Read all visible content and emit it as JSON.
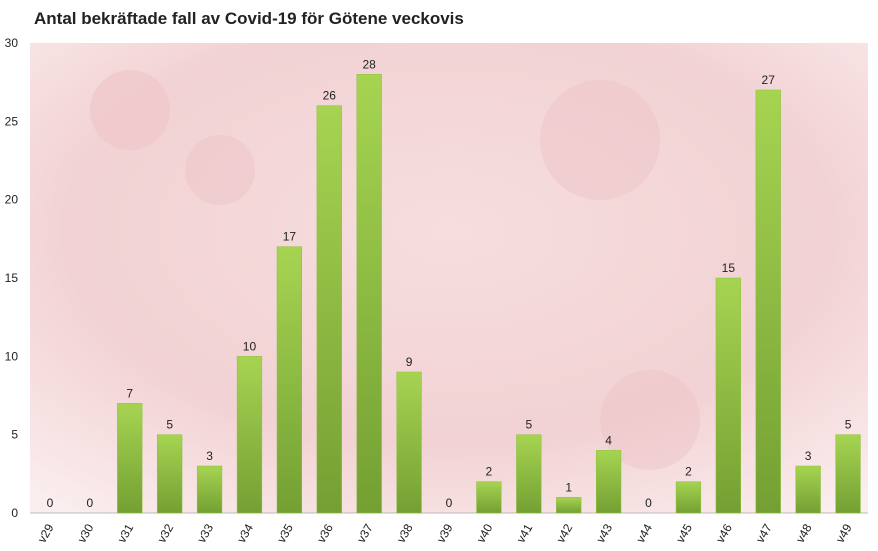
{
  "chart_data": {
    "type": "bar",
    "title": "Antal bekräftade fall av Covid-19 för Götene veckovis",
    "categories": [
      "v29",
      "v30",
      "v31",
      "v32",
      "v33",
      "v34",
      "v35",
      "v36",
      "v37",
      "v38",
      "v39",
      "v40",
      "v41",
      "v42",
      "v43",
      "v44",
      "v45",
      "v46",
      "v47",
      "v48",
      "v49"
    ],
    "values": [
      0,
      0,
      7,
      5,
      3,
      10,
      17,
      26,
      28,
      9,
      0,
      2,
      5,
      1,
      4,
      0,
      2,
      15,
      27,
      3,
      5
    ],
    "color": "#8cc040",
    "ylim": [
      0,
      30
    ],
    "yticks": [
      0,
      5,
      10,
      15,
      20,
      25,
      30
    ],
    "grid": false
  }
}
